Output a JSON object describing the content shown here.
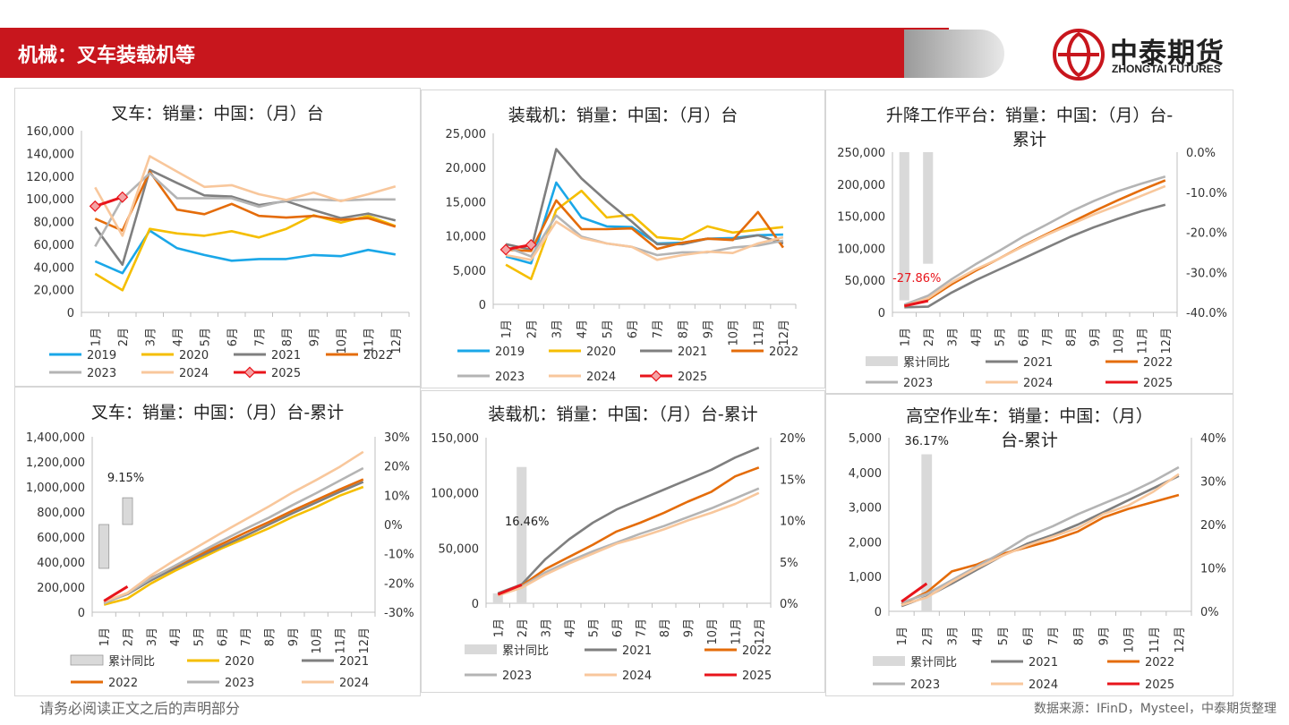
{
  "header": {
    "title": "机械：叉车装载机等"
  },
  "logo": {
    "cn": "中泰期货",
    "en": "ZHONGTAI FUTURES",
    "color": "#c8161d"
  },
  "footer": {
    "disclaimer": "请务必阅读正文之后的声明部分",
    "source": "数据来源：IFinD，Mysteel，中泰期货整理"
  },
  "colors": {
    "2019": "#1aa7e8",
    "2020": "#f5be00",
    "2021": "#7f7f7f",
    "2022": "#e46c0a",
    "2023": "#b4b4b4",
    "2024": "#f8c79c",
    "2025": "#e8141b",
    "bar": "#d9d9d9"
  },
  "months": [
    "1月",
    "2月",
    "3月",
    "4月",
    "5月",
    "6月",
    "7月",
    "8月",
    "9月",
    "10月",
    "11月",
    "12月"
  ],
  "chart_data": [
    {
      "id": "forklift-monthly",
      "type": "line",
      "title": "叉车：销量：中国：（月）台",
      "ylim": [
        0,
        160000
      ],
      "yticks": [
        "0",
        "20,000",
        "40,000",
        "60,000",
        "80,000",
        "100,000",
        "120,000",
        "140,000",
        "160,000"
      ],
      "series": [
        {
          "name": "2019",
          "values": [
            45000,
            34500,
            72000,
            56500,
            50500,
            45500,
            47000,
            47000,
            50500,
            49500,
            55000,
            51000
          ]
        },
        {
          "name": "2020",
          "values": [
            34000,
            19500,
            73500,
            69500,
            67500,
            71500,
            66000,
            73500,
            85500,
            79000,
            85000,
            76000
          ]
        },
        {
          "name": "2021",
          "values": [
            75000,
            42000,
            125500,
            114000,
            103000,
            102000,
            94500,
            98000,
            90000,
            83000,
            87000,
            81000
          ]
        },
        {
          "name": "2022",
          "values": [
            82500,
            72000,
            124000,
            90500,
            86500,
            95500,
            85000,
            83500,
            85000,
            81500,
            83000,
            75500
          ]
        },
        {
          "name": "2023",
          "values": [
            58000,
            100000,
            122500,
            100500,
            100500,
            100500,
            93000,
            98500,
            99500,
            98500,
            99500,
            99500
          ]
        },
        {
          "name": "2024",
          "values": [
            110000,
            67500,
            137500,
            124000,
            110500,
            112000,
            104000,
            99000,
            105500,
            98000,
            104000,
            111000
          ]
        },
        {
          "name": "2025",
          "values": [
            93500,
            101500
          ],
          "marker": true
        }
      ]
    },
    {
      "id": "loader-monthly",
      "type": "line",
      "title": "装载机：销量：中国：（月）台",
      "ylim": [
        0,
        25000
      ],
      "yticks": [
        "0",
        "5,000",
        "10,000",
        "15,000",
        "20,000",
        "25,000"
      ],
      "series": [
        {
          "name": "2019",
          "values": [
            7000,
            6000,
            17800,
            12700,
            11400,
            11300,
            8900,
            9000,
            9600,
            9700,
            10100,
            10200
          ]
        },
        {
          "name": "2020",
          "values": [
            5800,
            3700,
            13800,
            16600,
            12700,
            13100,
            9800,
            9500,
            11400,
            10500,
            10900,
            11300
          ]
        },
        {
          "name": "2021",
          "values": [
            8800,
            8000,
            22700,
            18400,
            15100,
            12100,
            8800,
            8800,
            9600,
            9500,
            10100,
            8900
          ]
        },
        {
          "name": "2022",
          "values": [
            8000,
            7800,
            15200,
            11000,
            11000,
            11100,
            8100,
            9000,
            9600,
            9400,
            13500,
            8300
          ]
        },
        {
          "name": "2023",
          "values": [
            8400,
            7000,
            13000,
            9900,
            8900,
            8400,
            7200,
            7600,
            7600,
            8300,
            8600,
            9300
          ]
        },
        {
          "name": "2024",
          "values": [
            7200,
            6500,
            12100,
            9700,
            8900,
            8400,
            6500,
            7200,
            7700,
            7500,
            8900,
            9800
          ]
        },
        {
          "name": "2025",
          "values": [
            8000,
            8700
          ],
          "marker": true
        }
      ]
    },
    {
      "id": "aerial-platform-cum",
      "type": "bar-line",
      "title": [
        "升降工作平台：销量：中国：（月）台-",
        "累计"
      ],
      "ylim": [
        0,
        250000
      ],
      "yticks": [
        "0",
        "50,000",
        "100,000",
        "150,000",
        "200,000",
        "250,000"
      ],
      "y2lim": [
        -40,
        0
      ],
      "y2ticks": [
        "-40.0%",
        "-30.0%",
        "-20.0%",
        "-10.0%",
        "0.0%"
      ],
      "bar_values": [
        -37.0,
        -27.86
      ],
      "bar_label": "-27.86%",
      "bar_label_color": "#e8141b",
      "series": [
        {
          "name": "2021",
          "values": [
            8000,
            9000,
            31000,
            50000,
            67000,
            84000,
            101000,
            118000,
            133000,
            146000,
            158000,
            168000
          ]
        },
        {
          "name": "2022",
          "values": [
            9500,
            20000,
            44000,
            65000,
            84000,
            104000,
            122000,
            140000,
            158000,
            175000,
            191000,
            206000
          ]
        },
        {
          "name": "2023",
          "values": [
            12000,
            26000,
            52000,
            75000,
            96000,
            118000,
            137000,
            157000,
            174000,
            189000,
            201000,
            212000
          ]
        },
        {
          "name": "2024",
          "values": [
            10000,
            22000,
            47000,
            67000,
            84000,
            103000,
            121000,
            137000,
            153000,
            167000,
            182000,
            197000
          ]
        },
        {
          "name": "2025",
          "values": [
            10000,
            18000
          ]
        }
      ],
      "legend": [
        "累计同比",
        "2021",
        "2022",
        "2023",
        "2024",
        "2025"
      ]
    },
    {
      "id": "forklift-cum",
      "type": "bar-line",
      "title": [
        "叉车：销量：中国：（月）台-累计"
      ],
      "ylim": [
        0,
        1400000
      ],
      "yticks": [
        "0",
        "200,000",
        "400,000",
        "600,000",
        "800,000",
        "1,000,000",
        "1,200,000",
        "1,400,000"
      ],
      "y2lim": [
        -30,
        30
      ],
      "y2ticks": [
        "-30%",
        "-20%",
        "-10%",
        "0%",
        "10%",
        "20%",
        "30%"
      ],
      "bar_range": [
        [
          -15,
          0
        ],
        [
          0,
          9.15
        ]
      ],
      "bar_label": "9.15%",
      "bar_label_color": "#222222",
      "series": [
        {
          "name": "2020",
          "values": [
            60000,
            110000,
            230000,
            330000,
            420000,
            510000,
            590000,
            670000,
            760000,
            840000,
            930000,
            1000000
          ]
        },
        {
          "name": "2021",
          "values": [
            75000,
            145000,
            255000,
            350000,
            440000,
            525000,
            610000,
            700000,
            790000,
            875000,
            960000,
            1040000
          ]
        },
        {
          "name": "2022",
          "values": [
            80000,
            150000,
            275000,
            365000,
            455000,
            545000,
            635000,
            720000,
            810000,
            895000,
            980000,
            1060000
          ]
        },
        {
          "name": "2023",
          "values": [
            70000,
            150000,
            270000,
            370000,
            470000,
            570000,
            665000,
            755000,
            855000,
            950000,
            1050000,
            1150000
          ]
        },
        {
          "name": "2024",
          "values": [
            85000,
            155000,
            295000,
            415000,
            525000,
            635000,
            740000,
            845000,
            955000,
            1055000,
            1160000,
            1280000
          ]
        },
        {
          "name": "2025",
          "values": [
            90000,
            205000
          ]
        }
      ],
      "legend": [
        "累计同比",
        "2020",
        "2021",
        "2022",
        "2023",
        "2024"
      ]
    },
    {
      "id": "loader-cum",
      "type": "bar-line",
      "title": [
        "装载机：销量：中国：（月）台-累计"
      ],
      "ylim": [
        0,
        150000
      ],
      "yticks": [
        "0",
        "50,000",
        "100,000",
        "150,000"
      ],
      "y2lim": [
        0,
        20
      ],
      "y2ticks": [
        "0%",
        "5%",
        "10%",
        "15%",
        "20%"
      ],
      "bar_values": [
        1.2,
        16.46
      ],
      "bar_label": "16.46%",
      "bar_label_color": "#222222",
      "series": [
        {
          "name": "2021",
          "values": [
            9000,
            17000,
            40000,
            58000,
            73000,
            85000,
            94000,
            103000,
            112000,
            121000,
            132000,
            141000
          ]
        },
        {
          "name": "2022",
          "values": [
            8000,
            16000,
            31000,
            42000,
            53000,
            65000,
            73000,
            82000,
            92000,
            101000,
            115000,
            123000
          ]
        },
        {
          "name": "2023",
          "values": [
            8000,
            15000,
            28000,
            38000,
            47000,
            55000,
            63000,
            70000,
            78000,
            86000,
            95000,
            104000
          ]
        },
        {
          "name": "2024",
          "values": [
            7000,
            14000,
            26000,
            36000,
            45000,
            54000,
            60000,
            67000,
            75000,
            82000,
            90000,
            100000
          ]
        },
        {
          "name": "2025",
          "values": [
            8000,
            16700
          ]
        }
      ],
      "legend": [
        "累计同比",
        "2021",
        "2022",
        "2023",
        "2024",
        "2025"
      ]
    },
    {
      "id": "aerial-work-cum",
      "type": "bar-line",
      "title": [
        "高空作业车：销量：中国：（月）",
        "台-累计"
      ],
      "ylim": [
        0,
        5000
      ],
      "yticks": [
        "0",
        "1,000",
        "2,000",
        "3,000",
        "4,000",
        "5,000"
      ],
      "y2lim": [
        0,
        40
      ],
      "y2ticks": [
        "0%",
        "10%",
        "20%",
        "30%",
        "40%"
      ],
      "bar_values": [
        0,
        36.17
      ],
      "bar_label": "36.17%",
      "bar_label_color": "#222222",
      "series": [
        {
          "name": "2021",
          "values": [
            150,
            420,
            800,
            1200,
            1600,
            1950,
            2200,
            2500,
            2850,
            3200,
            3550,
            3900
          ]
        },
        {
          "name": "2022",
          "values": [
            200,
            550,
            1150,
            1350,
            1650,
            1850,
            2050,
            2300,
            2700,
            2950,
            3150,
            3350
          ]
        },
        {
          "name": "2023",
          "values": [
            250,
            500,
            900,
            1300,
            1700,
            2150,
            2450,
            2800,
            3100,
            3400,
            3750,
            4150
          ]
        },
        {
          "name": "2024",
          "values": [
            180,
            400,
            850,
            1250,
            1600,
            1900,
            2150,
            2400,
            2800,
            3050,
            3450,
            3950
          ]
        },
        {
          "name": "2025",
          "values": [
            280,
            800
          ]
        }
      ],
      "legend": [
        "累计同比",
        "2021",
        "2022",
        "2023",
        "2024",
        "2025"
      ]
    }
  ]
}
